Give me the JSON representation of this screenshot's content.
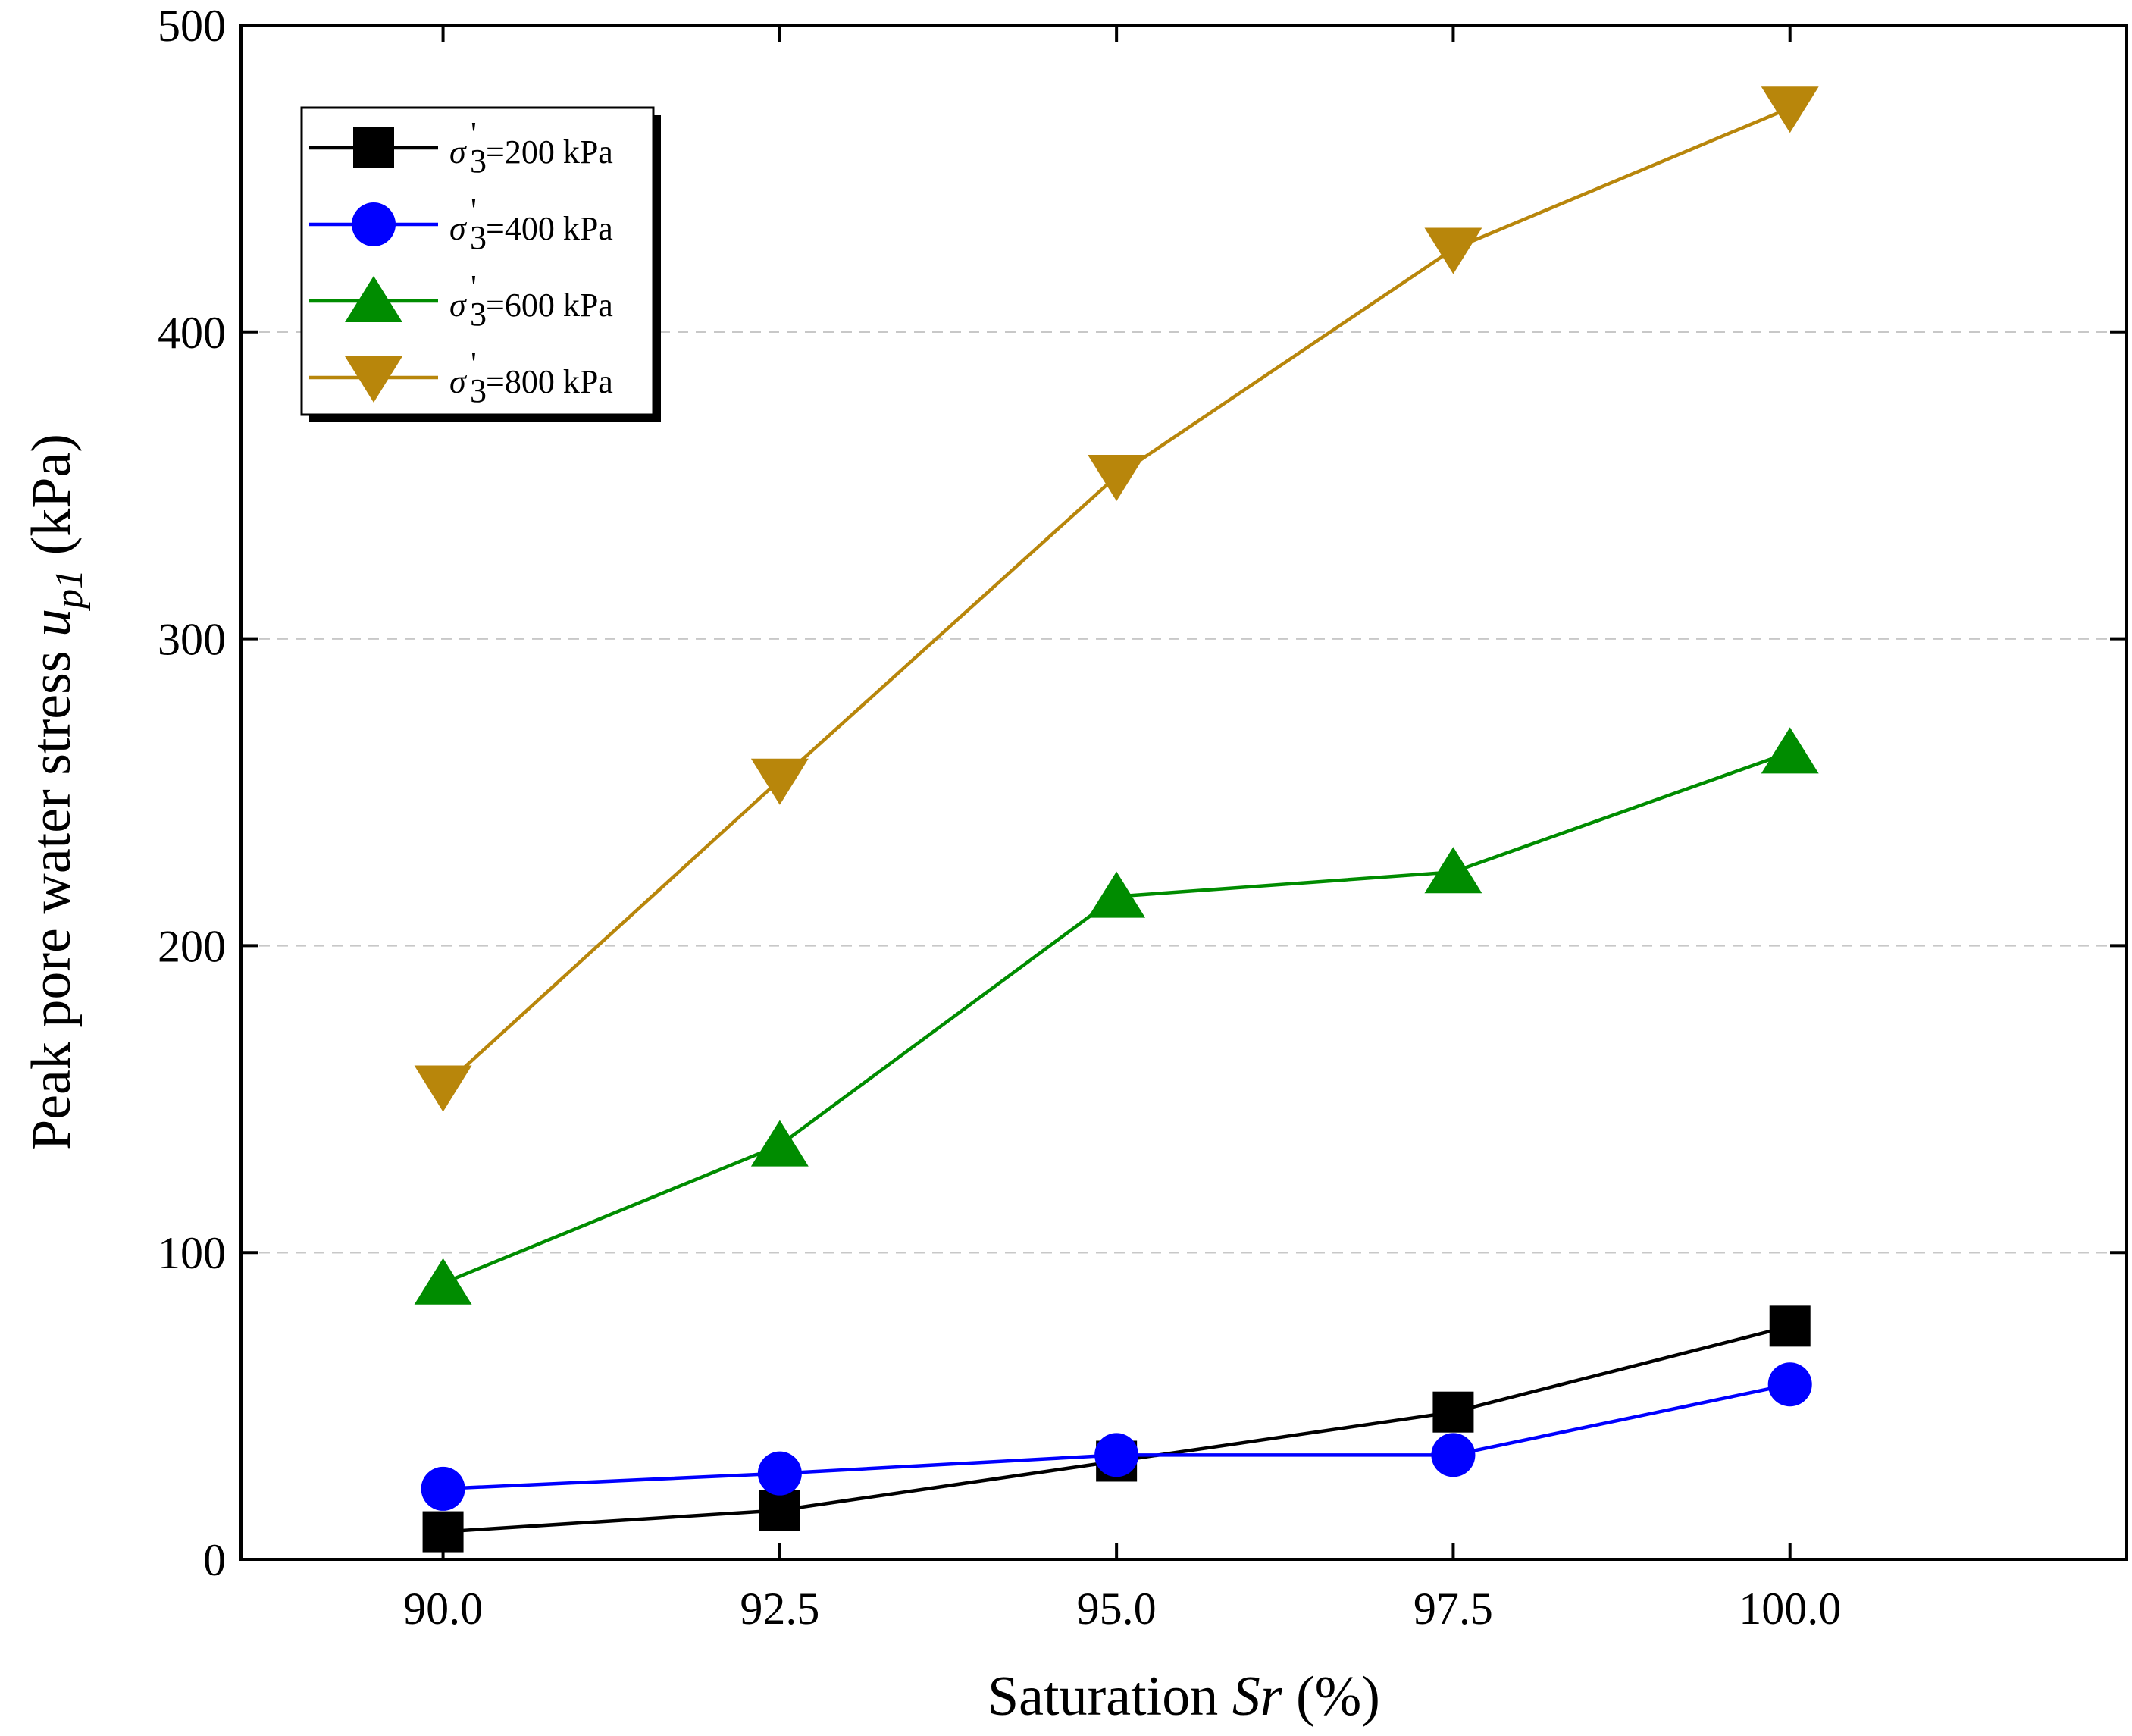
{
  "chart_data": {
    "type": "line",
    "xlabel": {
      "prefix": "Saturation ",
      "var": "Sr",
      "suffix": " (%)"
    },
    "ylabel": {
      "prefix": "Peak pore water stress ",
      "var": "u",
      "sub": "p1",
      "suffix": " (kPa)"
    },
    "xlim": [
      88.5,
      102.5
    ],
    "ylim": [
      0,
      500
    ],
    "x": [
      90.0,
      92.5,
      95.0,
      97.5,
      100.0
    ],
    "x_tick_labels": [
      "90.0",
      "92.5",
      "95.0",
      "97.5",
      "100.0"
    ],
    "y_ticks": [
      0,
      100,
      200,
      300,
      400,
      500
    ],
    "y_tick_labels": [
      "0",
      "100",
      "200",
      "300",
      "400",
      "500"
    ],
    "grid": {
      "horizontal": true,
      "vertical": false,
      "style": "dashed light gray"
    },
    "legend_position": "top-left",
    "series": [
      {
        "name": "σ3' = 200 kPa",
        "label_value": "=200 kPa",
        "marker": "square",
        "color": "#000000",
        "values": [
          9,
          16,
          32,
          48,
          76
        ]
      },
      {
        "name": "σ3' = 400 kPa",
        "label_value": "=400 kPa",
        "marker": "circle",
        "color": "#0000ff",
        "values": [
          23,
          28,
          34,
          34,
          57
        ]
      },
      {
        "name": "σ3' = 600 kPa",
        "label_value": "=600 kPa",
        "marker": "triangle-up",
        "color": "#008c00",
        "values": [
          90,
          135,
          216,
          224,
          263
        ]
      },
      {
        "name": "σ3' = 800 kPa",
        "label_value": "=800 kPa",
        "marker": "triangle-down",
        "color": "#b8860b",
        "values": [
          154,
          254,
          353,
          427,
          473
        ]
      }
    ]
  }
}
